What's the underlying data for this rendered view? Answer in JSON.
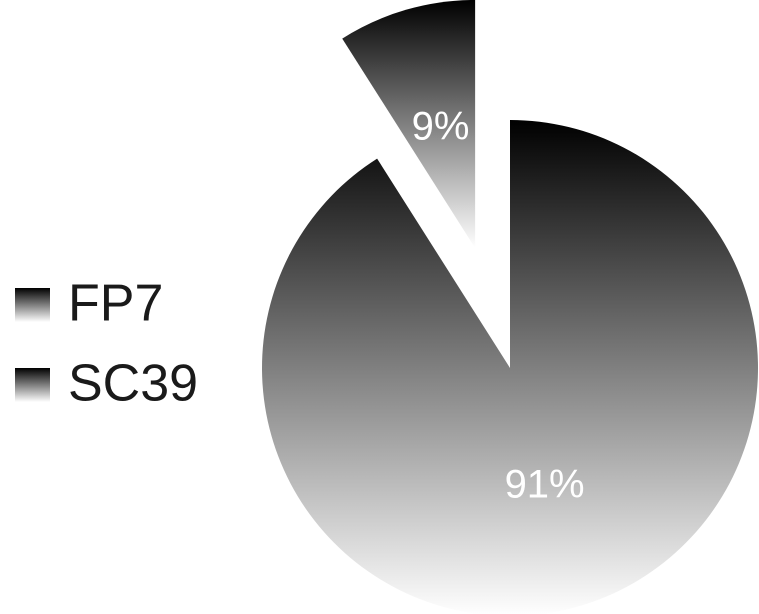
{
  "chart_data": {
    "type": "pie",
    "categories": [
      "FP7",
      "SC39"
    ],
    "values": [
      91,
      9
    ],
    "value_labels": [
      "91%",
      "9%"
    ],
    "gradient": [
      "#000000",
      "#ffffff"
    ],
    "label_color": "#ffffff",
    "legend": "left"
  }
}
